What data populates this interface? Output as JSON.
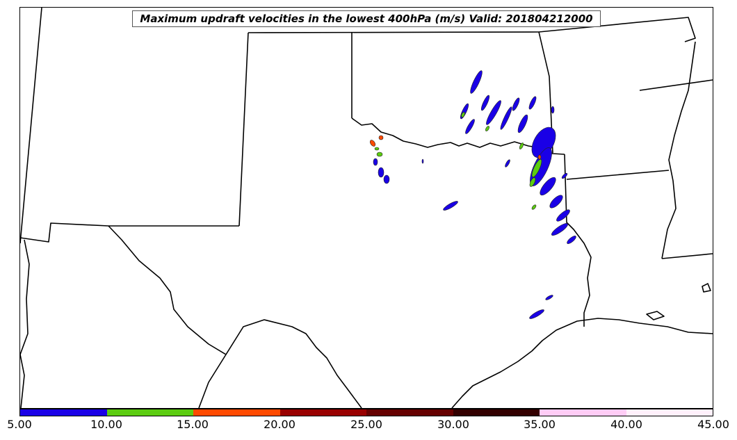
{
  "title": "Maximum updraft velocities in the lowest 400hPa (m/s) Valid: 201804212000",
  "colorbar": {
    "ticks": [
      "5.00",
      "10.00",
      "15.00",
      "20.00",
      "25.00",
      "30.00",
      "35.00",
      "40.00",
      "45.00"
    ],
    "colors": [
      "#1a00e6",
      "#5ccc11",
      "#ff4a00",
      "#990000",
      "#660000",
      "#330000",
      "#ffccf5",
      "#fff0fb"
    ]
  },
  "field_colors": {
    "low": "#1a00e6",
    "mid": "#5ccc11",
    "high": "#ff4a00"
  }
}
